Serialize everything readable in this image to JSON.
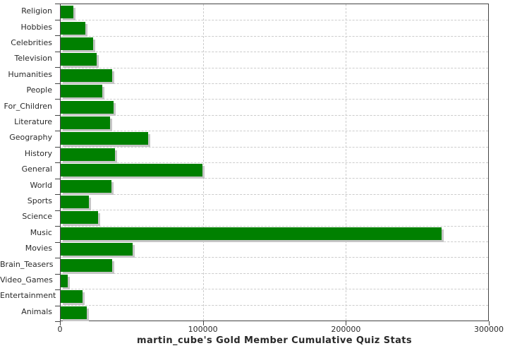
{
  "title": "martin_cube's Gold Member Cumulative Quiz Stats",
  "chart_data": {
    "type": "bar",
    "orientation": "horizontal",
    "title": "martin_cube's Gold Member Cumulative Quiz Stats",
    "xlabel": "",
    "ylabel": "",
    "categories": [
      "Religion",
      "Hobbies",
      "Celebrities",
      "Television",
      "Humanities",
      "People",
      "For_Children",
      "Literature",
      "Geography",
      "History",
      "General",
      "World",
      "Sports",
      "Science",
      "Music",
      "Movies",
      "Brain_Teasers",
      "Video_Games",
      "Entertainment",
      "Animals"
    ],
    "values": [
      8700,
      17100,
      22600,
      25100,
      35900,
      29400,
      37300,
      34800,
      61400,
      37900,
      99300,
      35800,
      20000,
      26400,
      267200,
      50700,
      35900,
      4800,
      15300,
      18200
    ],
    "xlim": [
      0,
      300000
    ],
    "x_ticks": [
      0,
      100000,
      200000,
      300000
    ],
    "x_tick_labels": [
      "0",
      "100000",
      "200000",
      "300000"
    ],
    "grid": true,
    "legend": "none",
    "bar_color": "#008000",
    "bar_shadow_color": "#c6c6c6",
    "gridline_color": "#cccccc",
    "axis_color": "#444444",
    "text_color": "#2a2a2a",
    "background_color": "#ffffff"
  }
}
